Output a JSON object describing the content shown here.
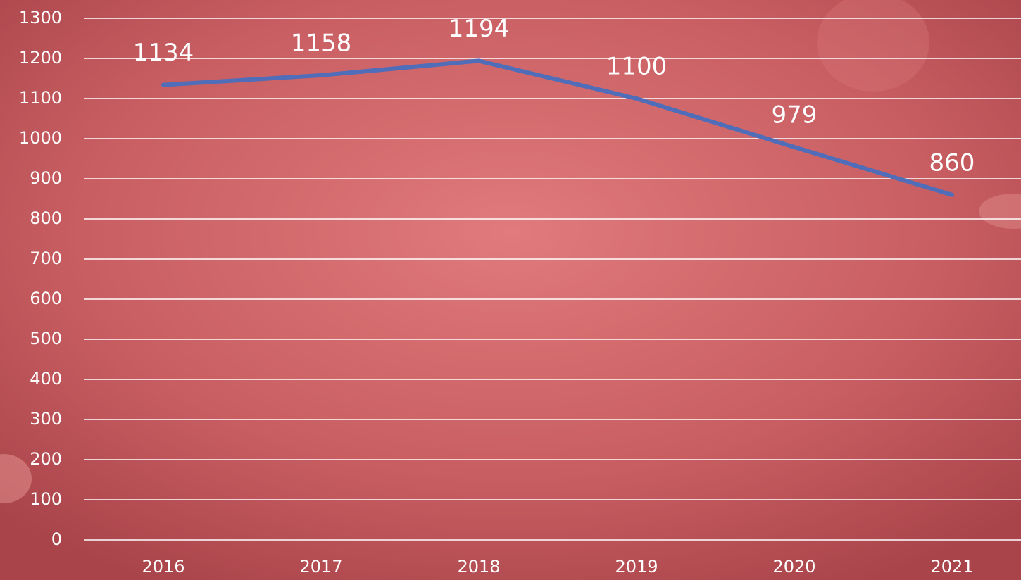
{
  "chart_data": {
    "type": "line",
    "categories": [
      "2016",
      "2017",
      "2018",
      "2019",
      "2020",
      "2021"
    ],
    "values": [
      1134,
      1158,
      1194,
      1100,
      979,
      860
    ],
    "color": "#4f6db8",
    "ylim": [
      0,
      1300
    ],
    "yticks": [
      0,
      100,
      200,
      300,
      400,
      500,
      600,
      700,
      800,
      900,
      1000,
      1100,
      1200,
      1300
    ],
    "grid": true
  }
}
